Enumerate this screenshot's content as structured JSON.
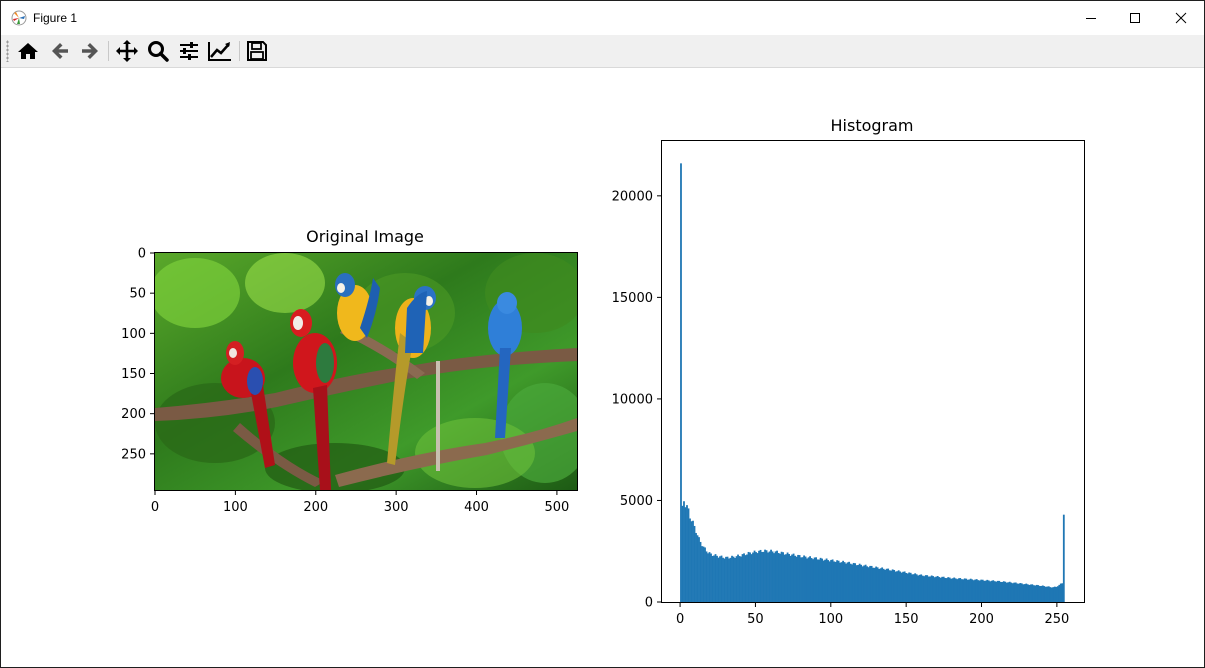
{
  "window": {
    "title": "Figure 1",
    "controls": [
      "minimize",
      "maximize",
      "close"
    ]
  },
  "toolbar": {
    "buttons": [
      {
        "name": "home",
        "icon": "home-icon"
      },
      {
        "name": "back",
        "icon": "arrow-left-icon"
      },
      {
        "name": "forward",
        "icon": "arrow-right-icon"
      },
      {
        "name": "pan",
        "icon": "move-icon"
      },
      {
        "name": "zoom",
        "icon": "magnifier-icon"
      },
      {
        "name": "configure-subplots",
        "icon": "sliders-icon"
      },
      {
        "name": "edit-axes",
        "icon": "line-chart-icon"
      },
      {
        "name": "save",
        "icon": "floppy-disk-icon"
      }
    ]
  },
  "image_axes": {
    "title": "Original Image",
    "xticks": [
      "0",
      "100",
      "200",
      "300",
      "400",
      "500"
    ],
    "yticks": [
      "0",
      "50",
      "100",
      "150",
      "200",
      "250"
    ],
    "image_size": [
      525,
      295
    ]
  },
  "chart_data": {
    "type": "bar",
    "title": "Histogram",
    "xlabel": "",
    "ylabel": "",
    "xlim": [
      -12,
      268
    ],
    "ylim": [
      0,
      22700
    ],
    "xticks": [
      "0",
      "50",
      "100",
      "150",
      "200",
      "250"
    ],
    "yticks": [
      "0",
      "5000",
      "10000",
      "15000",
      "20000"
    ],
    "color": "#1f77b4",
    "bins": 256,
    "anchor_points": [
      [
        0,
        21600
      ],
      [
        1,
        4600
      ],
      [
        2,
        5000
      ],
      [
        3,
        4800
      ],
      [
        4,
        4700
      ],
      [
        5,
        4500
      ],
      [
        6,
        4200
      ],
      [
        8,
        3900
      ],
      [
        10,
        3500
      ],
      [
        12,
        3100
      ],
      [
        15,
        2700
      ],
      [
        18,
        2450
      ],
      [
        20,
        2350
      ],
      [
        25,
        2250
      ],
      [
        30,
        2180
      ],
      [
        35,
        2220
      ],
      [
        40,
        2300
      ],
      [
        45,
        2400
      ],
      [
        50,
        2470
      ],
      [
        55,
        2520
      ],
      [
        60,
        2500
      ],
      [
        65,
        2450
      ],
      [
        70,
        2380
      ],
      [
        80,
        2250
      ],
      [
        90,
        2150
      ],
      [
        100,
        2050
      ],
      [
        110,
        1950
      ],
      [
        120,
        1820
      ],
      [
        130,
        1700
      ],
      [
        140,
        1580
      ],
      [
        150,
        1450
      ],
      [
        160,
        1320
      ],
      [
        170,
        1250
      ],
      [
        180,
        1180
      ],
      [
        190,
        1130
      ],
      [
        200,
        1080
      ],
      [
        210,
        1030
      ],
      [
        220,
        960
      ],
      [
        230,
        880
      ],
      [
        240,
        800
      ],
      [
        245,
        750
      ],
      [
        248,
        720
      ],
      [
        250,
        760
      ],
      [
        252,
        820
      ],
      [
        253,
        900
      ],
      [
        254,
        950
      ],
      [
        255,
        4300
      ]
    ]
  }
}
